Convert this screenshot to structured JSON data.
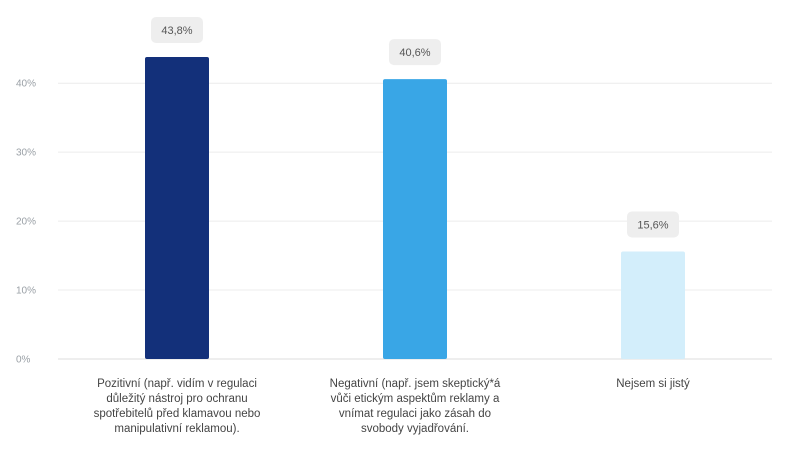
{
  "chart_data": {
    "type": "bar",
    "categories": [
      [
        "Pozitivní (např. vidím v regulaci",
        "důležitý nástroj pro ochranu",
        "spotřebitelů před klamavou nebo",
        "manipulativní reklamou)."
      ],
      [
        "Negativní (např. jsem skeptický*á",
        "vůči etickým aspektům reklamy a",
        "vnímat regulaci jako zásah do",
        "svobody vyjadřování."
      ],
      [
        "Nejsem si jistý"
      ]
    ],
    "values": [
      43.8,
      40.6,
      15.6
    ],
    "data_labels": [
      "43,8%",
      "40,6%",
      "15,6%"
    ],
    "bar_colors": [
      "#13307a",
      "#39a6e6",
      "#d3eefb"
    ],
    "yticks": [
      0,
      10,
      20,
      30,
      40
    ],
    "ytick_labels": [
      "0%",
      "10%",
      "20%",
      "30%",
      "40%"
    ],
    "ylim": [
      0,
      43.8
    ],
    "grid": true,
    "legend": "none"
  }
}
